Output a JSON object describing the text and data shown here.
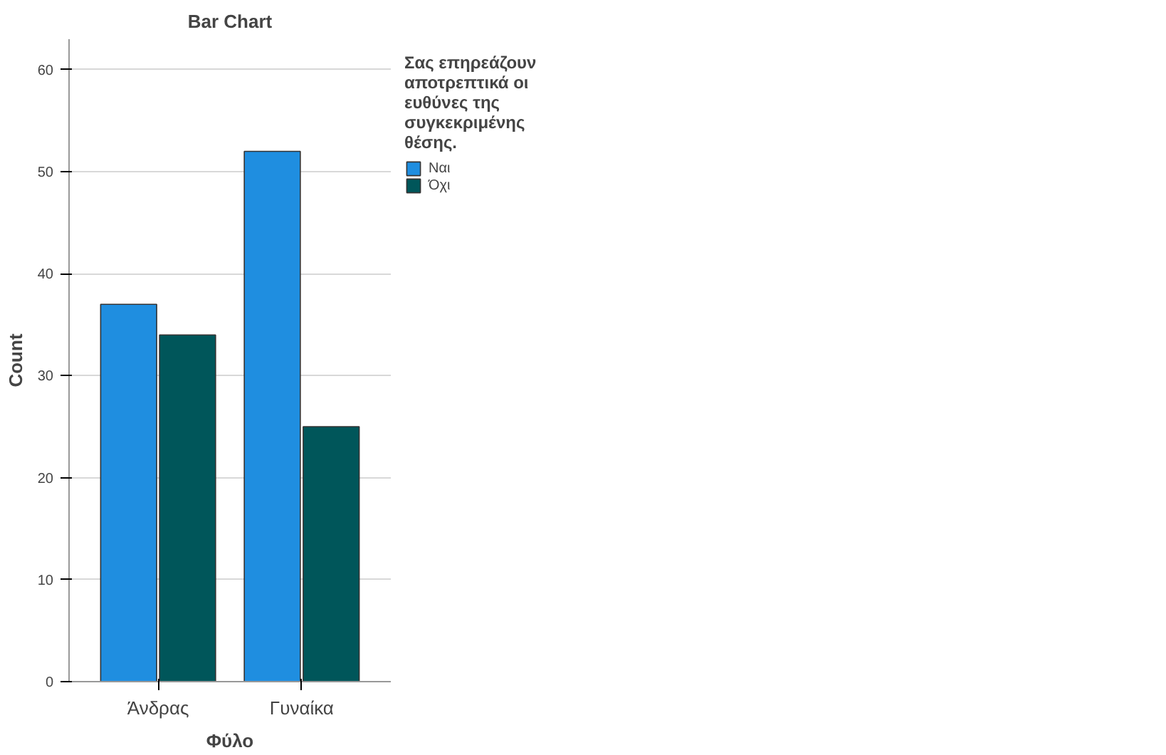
{
  "chart_data": {
    "type": "bar",
    "title": "Bar Chart",
    "xlabel": "Φύλο",
    "ylabel": "Count",
    "legend_title": "Σας επηρεάζουν αποτρεπτικά οι ευθύνες της συγκεκριμένης θέσης.",
    "categories": [
      "Άνδρας",
      "Γυναίκα"
    ],
    "series": [
      {
        "name": "Ναι",
        "color": "#1f8ee0",
        "values": [
          37,
          52
        ]
      },
      {
        "name": "Όχι",
        "color": "#00565a",
        "values": [
          34,
          25
        ]
      }
    ],
    "ylim": [
      0,
      63
    ],
    "yticks": [
      0,
      10,
      20,
      30,
      40,
      50,
      60
    ],
    "grid": "y",
    "legend": "right"
  }
}
